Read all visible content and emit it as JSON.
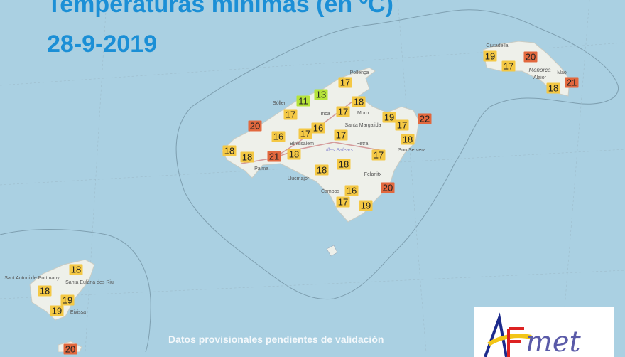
{
  "title": "Temperaturas mínimas (en ºC)",
  "date": "28-9-2019",
  "note": "Datos provisionales pendientes de validación",
  "logo_text": "AEmet",
  "colors": {
    "sea": "#aad0e2",
    "land": "#eef0ea",
    "title": "#1b8fd6",
    "cool": "#b6e43a",
    "mild": "#f4c844",
    "warm": "#e2683e"
  },
  "places": [
    "Sóller",
    "Inca",
    "Binissalem",
    "Muro",
    "Santa Margalida",
    "Petra",
    "Illes Balears",
    "Felanitx",
    "Son Servera",
    "Campos",
    "Llucmajor",
    "Palma",
    "Pollença",
    "Ciutadella",
    "Menorca",
    "Alaior",
    "Maó",
    "Sant Antoni de Portmany",
    "Santa Eulària des Riu",
    "Eivissa"
  ],
  "mallorca": [
    17,
    13,
    11,
    18,
    17,
    17,
    19,
    22,
    20,
    17,
    16,
    17,
    16,
    17,
    18,
    18,
    18,
    21,
    18,
    17,
    18,
    18,
    20,
    16,
    17,
    19
  ],
  "menorca": [
    19,
    20,
    17,
    21,
    18
  ],
  "ibiza": [
    18,
    18,
    19,
    19,
    20
  ]
}
